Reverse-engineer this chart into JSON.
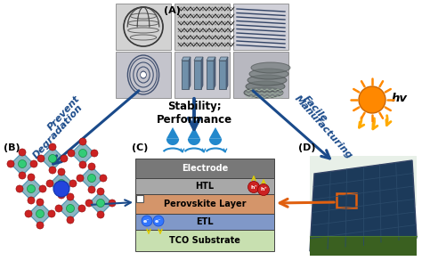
{
  "bg_color": "#ffffff",
  "label_A": "(A)",
  "label_B": "(B)",
  "label_C": "(C)",
  "label_D": "(D)",
  "arrow_left_text1": "Prevent",
  "arrow_left_text2": "Degradation",
  "arrow_center_text1": "Stability;",
  "arrow_center_text2": "Performance",
  "arrow_right_text1": "Facile",
  "arrow_right_text2": "Manufacturing",
  "hv_text": "hv",
  "layer_electrode": "Electrode",
  "layer_htl": "HTL",
  "layer_perovskite": "Perovskite Layer",
  "layer_etl": "ETL",
  "layer_tco": "TCO Substrate",
  "electrode_color": "#787878",
  "htl_color": "#a8a8a8",
  "perovskite_color": "#d4956a",
  "etl_color": "#8098c8",
  "tco_color": "#c8e0b0",
  "arrow_color": "#1a4a8a",
  "water_color": "#2288cc",
  "sun_color": "#ff8800",
  "rays_color": "#ffaa00",
  "hole_color": "#cc2222",
  "electron_color": "#3377ff",
  "orange_arrow": "#e06010",
  "carbon_gray1": "#d0d0d0",
  "carbon_gray2": "#b8b8c0",
  "carbon_gray3": "#c8c8d0",
  "carbon_gray4": "#b0b0b8",
  "carbon_gray5": "#c0c0c8",
  "carbon_gray6": "#b4b4bc"
}
